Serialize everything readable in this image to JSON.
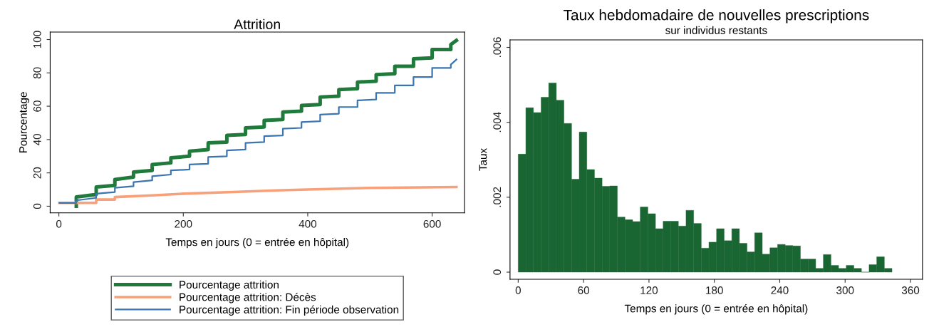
{
  "chart_data": [
    {
      "type": "line",
      "title": "Attrition",
      "xlabel": "Temps en jours (0 = entrée en hôpital)",
      "ylabel": "Pourcentage",
      "xlim": [
        -14,
        652
      ],
      "ylim": [
        -4,
        104.5
      ],
      "xticks": [
        0,
        200,
        400,
        600
      ],
      "yticks": [
        0,
        20,
        40,
        60,
        80,
        100
      ],
      "grid": false,
      "legend": "bottom",
      "series": [
        {
          "name": "Pourcentage attrition",
          "color": "#1f7a3c",
          "x": [
            28,
            28,
            60,
            60,
            90,
            90,
            120,
            120,
            150,
            150,
            180,
            180,
            210,
            210,
            240,
            240,
            270,
            270,
            300,
            300,
            330,
            330,
            360,
            360,
            390,
            390,
            420,
            420,
            450,
            450,
            480,
            480,
            510,
            510,
            540,
            540,
            570,
            570,
            600,
            600,
            630,
            630,
            639
          ],
          "values": [
            0,
            5.5,
            7,
            11.5,
            12.5,
            16,
            17.5,
            20.5,
            21.5,
            25,
            26,
            29,
            30,
            33,
            34,
            38,
            38.5,
            42.5,
            43,
            47,
            47.5,
            51.5,
            52,
            56.5,
            57,
            60.5,
            61,
            65.5,
            66,
            70,
            70.5,
            74.5,
            75,
            79,
            79.5,
            84,
            84,
            88.5,
            89,
            94,
            94,
            97,
            99.5
          ]
        },
        {
          "name": "Pourcentage attrition: Décès",
          "color": "#f7a07a",
          "x": [
            1,
            28,
            28,
            60,
            60,
            90,
            90,
            150,
            200,
            280,
            350,
            400,
            500,
            639
          ],
          "values": [
            2,
            2,
            2,
            2,
            4,
            4,
            5.5,
            6.5,
            7.5,
            8.5,
            9.5,
            10,
            11,
            11.5
          ]
        },
        {
          "name": "Pourcentage attrition: Fin période observation",
          "color": "#3b75af",
          "x": [
            1,
            28,
            28,
            60,
            60,
            90,
            90,
            120,
            120,
            150,
            150,
            180,
            180,
            210,
            210,
            240,
            240,
            270,
            270,
            300,
            300,
            330,
            330,
            360,
            360,
            390,
            390,
            420,
            420,
            450,
            450,
            480,
            480,
            510,
            510,
            540,
            540,
            570,
            570,
            600,
            600,
            630,
            630,
            639
          ],
          "values": [
            2,
            2,
            3.5,
            5,
            7.5,
            8.5,
            11,
            12,
            14.5,
            15.5,
            18,
            19,
            21.5,
            22,
            25,
            25.5,
            29.5,
            30,
            33.5,
            34,
            38,
            38.5,
            42,
            42.5,
            46.5,
            47,
            50.5,
            51,
            55,
            55.5,
            59.5,
            59.5,
            63.5,
            64,
            68,
            68,
            72.5,
            72.5,
            77.5,
            77.5,
            83,
            83,
            85,
            88
          ]
        }
      ]
    },
    {
      "type": "histogram",
      "title": "Taux hebdomadaire de nouvelles prescriptions",
      "subtitle": "sur individus restants",
      "xlabel": "Temps en jours (0 = entrée en hôpital)",
      "ylabel": "Taux",
      "color": "#1a6632",
      "xlim": [
        -7.5,
        371
      ],
      "ylim": [
        -0.00019,
        0.0062
      ],
      "xticks": [
        0,
        60,
        120,
        180,
        240,
        300,
        360
      ],
      "yticks": [
        {
          "value": 0,
          "label": "0"
        },
        {
          "value": 0.002,
          "label": ".002"
        },
        {
          "value": 0.004,
          "label": ".004"
        },
        {
          "value": 0.006,
          "label": ".006"
        }
      ],
      "grid": false,
      "bins": [
        0,
        7,
        14,
        21,
        28,
        35,
        42,
        49,
        56,
        63,
        70,
        77,
        84,
        91,
        98,
        105,
        112,
        119,
        126,
        133,
        140,
        147,
        154,
        161,
        168,
        175,
        182,
        189,
        196,
        203,
        210,
        217,
        224,
        231,
        238,
        245,
        252,
        259,
        266,
        273,
        280,
        287,
        294,
        301,
        308,
        315,
        322,
        329,
        336,
        343
      ],
      "values": [
        0.00315,
        0.00439,
        0.00426,
        0.00467,
        0.00505,
        0.00459,
        0.00397,
        0.00248,
        0.00374,
        0.00274,
        0.00251,
        0.00229,
        0.0023,
        0.00147,
        0.0014,
        0.00135,
        0.00174,
        0.00156,
        0.00116,
        0.00136,
        0.00136,
        0.00123,
        0.00165,
        0.0013,
        0.00064,
        0.0008,
        0.00116,
        0.00084,
        0.00116,
        0.00077,
        0.00054,
        0.00105,
        0.00048,
        0.00065,
        0.00074,
        0.00071,
        0.0007,
        0.00035,
        0.00035,
        0.0001,
        0.00047,
        0.00018,
        0.0001,
        0.00018,
        0.0001,
        0,
        0.0002,
        0.00041,
        0.0001
      ]
    }
  ]
}
